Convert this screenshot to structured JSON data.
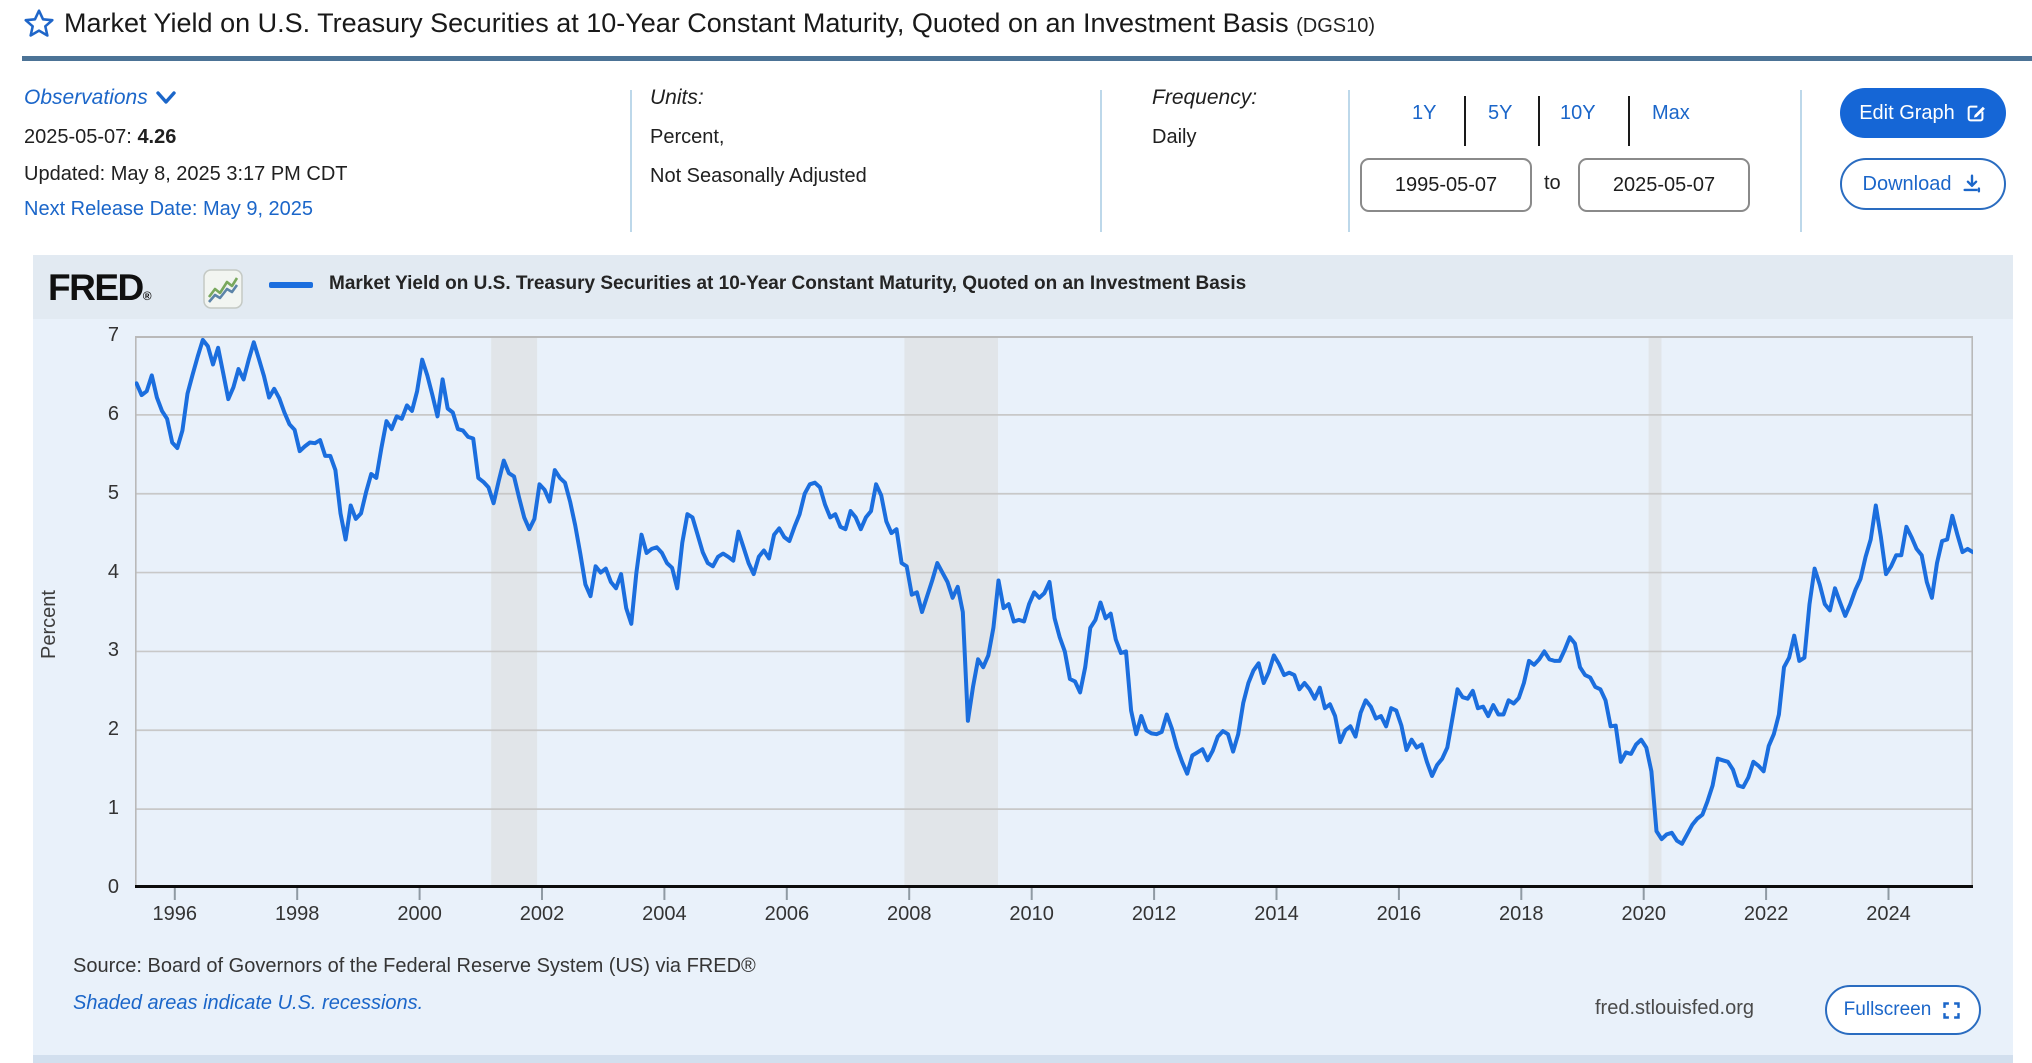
{
  "header": {
    "title": "Market Yield on U.S. Treasury Securities at 10-Year Constant Maturity, Quoted on an Investment Basis",
    "series_id": "(DGS10)"
  },
  "meta": {
    "observations_label": "Observations",
    "latest_date": "2025-05-07:",
    "latest_value": "4.26",
    "updated": "Updated: May 8, 2025 3:17 PM CDT",
    "next_release": "Next Release Date: May 9, 2025",
    "units_label": "Units:",
    "units_line1": "Percent,",
    "units_line2": "Not Seasonally Adjusted",
    "frequency_label": "Frequency:",
    "frequency_value": "Daily",
    "ranges": [
      "1Y",
      "5Y",
      "10Y",
      "Max"
    ],
    "date_start": "1995-05-07",
    "date_to_label": "to",
    "date_end": "2025-05-07",
    "edit_graph_label": "Edit Graph",
    "download_label": "Download"
  },
  "chart": {
    "brand": "FRED",
    "brand_reg": "®",
    "legend_label": "Market Yield on U.S. Treasury Securities at 10-Year Constant Maturity, Quoted on an Investment Basis",
    "source_line": "Source: Board of Governors of the Federal Reserve System (US) via FRED®",
    "recession_note": "Shaded areas indicate U.S. recessions.",
    "site": "fred.stlouisfed.org",
    "fullscreen_label": "Fullscreen"
  },
  "colors": {
    "accent_blue": "#1b66c9",
    "rule_blue": "#4c7396",
    "edit_button_blue": "#1566d6",
    "panel_bg": "#e9f1fa"
  },
  "chart_data": {
    "type": "line",
    "title": "Market Yield on U.S. Treasury Securities at 10-Year Constant Maturity, Quoted on an Investment Basis (DGS10)",
    "xlabel": "",
    "ylabel": "Percent",
    "ylim": [
      0,
      7
    ],
    "yticks": [
      0,
      1,
      2,
      3,
      4,
      5,
      6,
      7
    ],
    "xticks": [
      1996,
      1998,
      2000,
      2002,
      2004,
      2006,
      2008,
      2010,
      2012,
      2014,
      2016,
      2018,
      2020,
      2022,
      2024
    ],
    "x_range_years": [
      1995.35,
      2025.38
    ],
    "grid": true,
    "legend_position": "top",
    "line_color": "#1b6ede",
    "recession_color": "#e1e5e9",
    "recessions": [
      [
        2001.17,
        2001.92
      ],
      [
        2007.92,
        2009.45
      ],
      [
        2020.08,
        2020.29
      ]
    ],
    "series": {
      "name": "DGS10",
      "start": "1995-05",
      "frequency": "monthly",
      "unit": "Percent",
      "values": [
        6.4,
        6.25,
        6.3,
        6.5,
        6.22,
        6.05,
        5.95,
        5.65,
        5.58,
        5.8,
        6.27,
        6.51,
        6.74,
        6.95,
        6.87,
        6.64,
        6.85,
        6.53,
        6.2,
        6.35,
        6.58,
        6.45,
        6.7,
        6.92,
        6.71,
        6.49,
        6.22,
        6.33,
        6.21,
        6.03,
        5.88,
        5.81,
        5.54,
        5.6,
        5.65,
        5.64,
        5.68,
        5.48,
        5.48,
        5.3,
        4.75,
        4.42,
        4.85,
        4.68,
        4.75,
        5.02,
        5.25,
        5.2,
        5.58,
        5.92,
        5.82,
        5.98,
        5.95,
        6.12,
        6.05,
        6.3,
        6.7,
        6.5,
        6.25,
        5.98,
        6.45,
        6.08,
        6.03,
        5.82,
        5.8,
        5.72,
        5.7,
        5.2,
        5.15,
        5.08,
        4.88,
        5.16,
        5.42,
        5.26,
        5.22,
        4.95,
        4.7,
        4.55,
        4.68,
        5.12,
        5.05,
        4.9,
        5.3,
        5.2,
        5.14,
        4.9,
        4.6,
        4.24,
        3.85,
        3.7,
        4.08,
        4.0,
        4.05,
        3.88,
        3.8,
        3.98,
        3.55,
        3.35,
        4.0,
        4.48,
        4.25,
        4.3,
        4.32,
        4.25,
        4.12,
        4.06,
        3.8,
        4.38,
        4.74,
        4.7,
        4.48,
        4.26,
        4.12,
        4.08,
        4.2,
        4.24,
        4.2,
        4.15,
        4.52,
        4.32,
        4.12,
        3.98,
        4.2,
        4.28,
        4.18,
        4.48,
        4.56,
        4.45,
        4.4,
        4.58,
        4.74,
        5.0,
        5.12,
        5.14,
        5.08,
        4.86,
        4.7,
        4.74,
        4.58,
        4.55,
        4.78,
        4.7,
        4.55,
        4.7,
        4.78,
        5.12,
        4.98,
        4.65,
        4.5,
        4.55,
        4.12,
        4.08,
        3.72,
        3.75,
        3.5,
        3.7,
        3.9,
        4.12,
        4.0,
        3.88,
        3.68,
        3.82,
        3.5,
        2.12,
        2.55,
        2.9,
        2.8,
        2.95,
        3.3,
        3.9,
        3.55,
        3.6,
        3.38,
        3.4,
        3.38,
        3.6,
        3.75,
        3.68,
        3.74,
        3.88,
        3.42,
        3.18,
        3.0,
        2.65,
        2.62,
        2.48,
        2.8,
        3.3,
        3.4,
        3.62,
        3.42,
        3.48,
        3.15,
        2.98,
        3.0,
        2.25,
        1.95,
        2.18,
        2.0,
        1.96,
        1.95,
        1.98,
        2.2,
        2.02,
        1.78,
        1.6,
        1.45,
        1.68,
        1.72,
        1.76,
        1.62,
        1.74,
        1.92,
        1.99,
        1.95,
        1.73,
        1.95,
        2.35,
        2.6,
        2.76,
        2.85,
        2.6,
        2.74,
        2.95,
        2.84,
        2.7,
        2.73,
        2.7,
        2.52,
        2.6,
        2.52,
        2.4,
        2.54,
        2.28,
        2.33,
        2.18,
        1.85,
        2.0,
        2.05,
        1.92,
        2.22,
        2.38,
        2.3,
        2.15,
        2.18,
        2.05,
        2.28,
        2.25,
        2.06,
        1.75,
        1.88,
        1.78,
        1.82,
        1.6,
        1.42,
        1.56,
        1.64,
        1.78,
        2.15,
        2.52,
        2.42,
        2.4,
        2.5,
        2.28,
        2.3,
        2.18,
        2.32,
        2.2,
        2.2,
        2.38,
        2.34,
        2.41,
        2.6,
        2.88,
        2.83,
        2.9,
        3.0,
        2.9,
        2.88,
        2.88,
        3.02,
        3.18,
        3.1,
        2.8,
        2.7,
        2.67,
        2.55,
        2.52,
        2.38,
        2.05,
        2.06,
        1.6,
        1.72,
        1.7,
        1.82,
        1.88,
        1.78,
        1.48,
        0.72,
        0.62,
        0.68,
        0.7,
        0.6,
        0.56,
        0.68,
        0.8,
        0.88,
        0.93,
        1.1,
        1.3,
        1.64,
        1.62,
        1.6,
        1.5,
        1.3,
        1.28,
        1.4,
        1.6,
        1.55,
        1.48,
        1.8,
        1.95,
        2.2,
        2.8,
        2.92,
        3.2,
        2.88,
        2.92,
        3.6,
        4.05,
        3.85,
        3.6,
        3.52,
        3.8,
        3.62,
        3.45,
        3.6,
        3.78,
        3.92,
        4.2,
        4.42,
        4.85,
        4.45,
        3.98,
        4.08,
        4.22,
        4.22,
        4.58,
        4.45,
        4.3,
        4.22,
        3.88,
        3.68,
        4.12,
        4.4,
        4.42,
        4.72,
        4.48,
        4.26,
        4.3,
        4.26
      ]
    }
  }
}
